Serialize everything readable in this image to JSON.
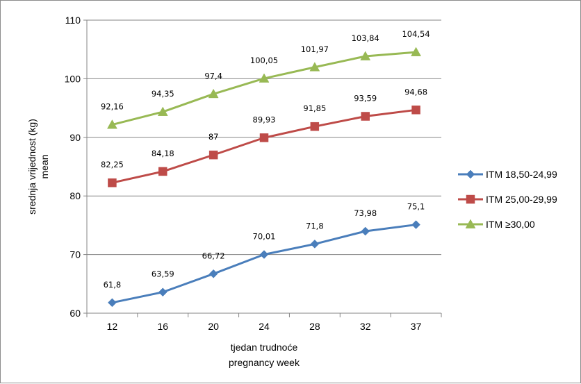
{
  "chart_data": {
    "type": "line",
    "title": "",
    "xlabel": [
      "tjedan trudnoće",
      "pregnancy week"
    ],
    "ylabel": [
      "srednja vrijednost (kg)",
      "mean"
    ],
    "categories": [
      "12",
      "16",
      "20",
      "24",
      "28",
      "32",
      "37"
    ],
    "ylim": [
      60,
      110
    ],
    "yticks": [
      60,
      70,
      80,
      90,
      100,
      110
    ],
    "grid": true,
    "legend": "right",
    "series": [
      {
        "name": "ITM 18,50-24,99",
        "values": [
          61.8,
          63.59,
          66.72,
          70.01,
          71.8,
          73.98,
          75.1
        ],
        "labels": [
          "61,8",
          "63,59",
          "66,72",
          "70,01",
          "71,8",
          "73,98",
          "75,1"
        ],
        "color": "#4a7ebb",
        "marker": "diamond"
      },
      {
        "name": "ITM 25,00-29,99",
        "values": [
          82.25,
          84.18,
          87,
          89.93,
          91.85,
          93.59,
          94.68
        ],
        "labels": [
          "82,25",
          "84,18",
          "87",
          "89,93",
          "91,85",
          "93,59",
          "94,68"
        ],
        "color": "#be4b48",
        "marker": "square"
      },
      {
        "name": "ITM ≥30,00",
        "values": [
          92.16,
          94.35,
          97.4,
          100.05,
          101.97,
          103.84,
          104.54
        ],
        "labels": [
          "92,16",
          "94,35",
          "97,4",
          "100,05",
          "101,97",
          "103,84",
          "104,54"
        ],
        "color": "#98b954",
        "marker": "triangle"
      }
    ]
  }
}
